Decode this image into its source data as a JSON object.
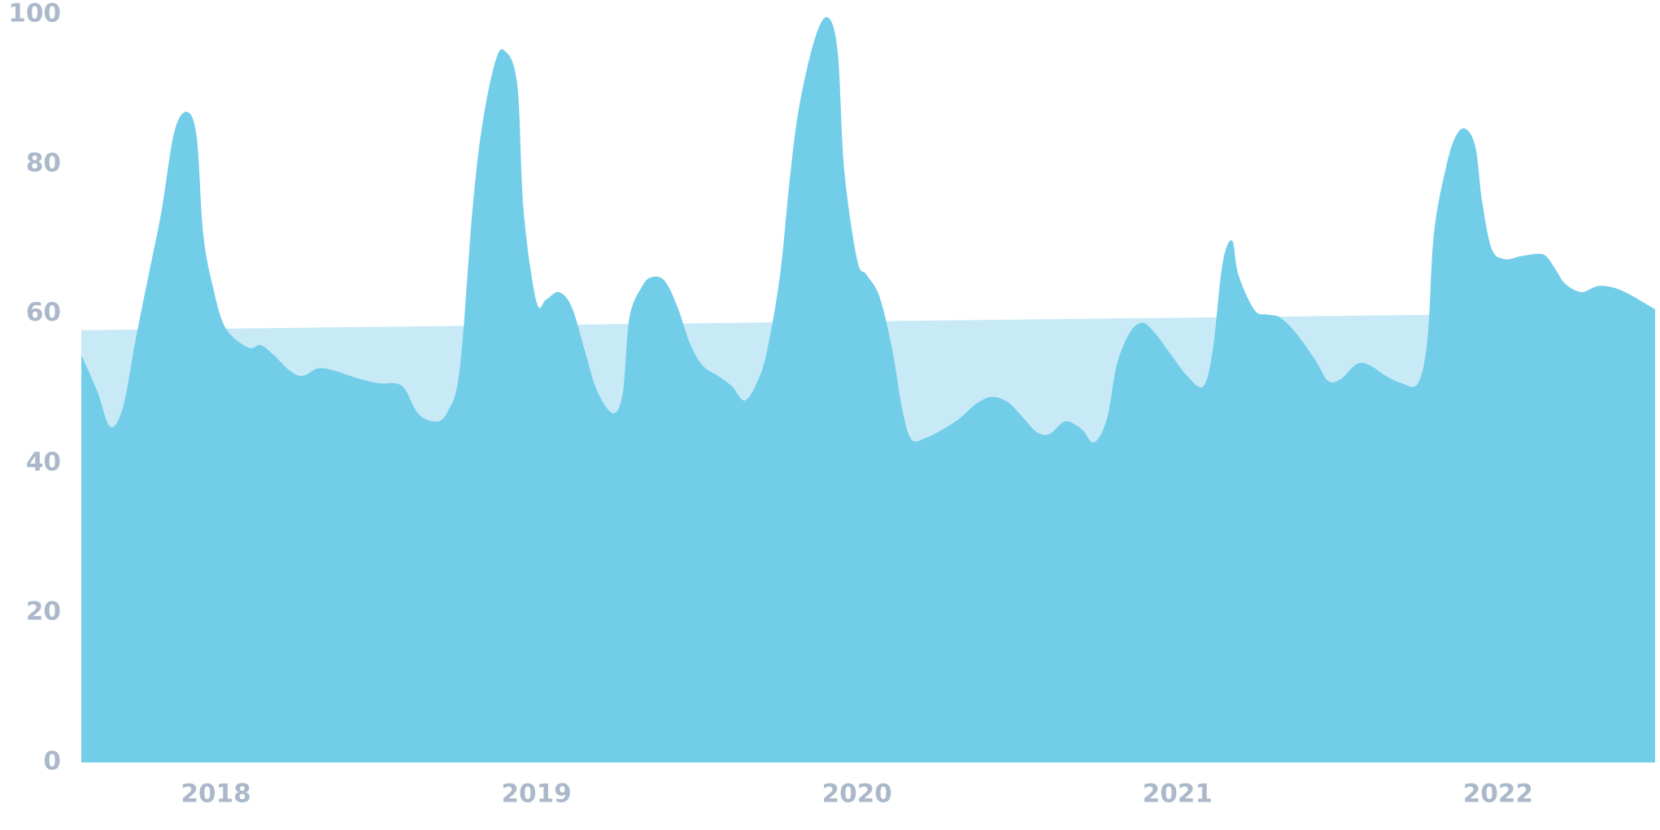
{
  "chart_data": {
    "type": "area",
    "xlim": [
      2017.58,
      2022.49
    ],
    "xticks": [
      2018,
      2019,
      2020,
      2021,
      2022
    ],
    "ylim": [
      0,
      100
    ],
    "yticks": [
      0,
      20,
      40,
      60,
      80,
      100
    ],
    "grid": false,
    "series": [
      {
        "color": "#c8eaf7",
        "x": [
          2017.58,
          2022.49
        ],
        "values": [
          57.8,
          60.2
        ]
      },
      {
        "color": "#72cde9",
        "x": [
          2017.58,
          2017.63,
          2017.67,
          2017.71,
          2017.75,
          2017.79,
          2017.83,
          2017.87,
          2017.91,
          2017.94,
          2017.96,
          2017.99,
          2018.03,
          2018.1,
          2018.14,
          2018.18,
          2018.23,
          2018.27,
          2018.32,
          2018.37,
          2018.44,
          2018.51,
          2018.56,
          2018.59,
          2018.63,
          2018.68,
          2018.72,
          2018.76,
          2018.8,
          2018.83,
          2018.87,
          2018.9,
          2018.94,
          2018.96,
          2019.0,
          2019.03,
          2019.07,
          2019.11,
          2019.15,
          2019.19,
          2019.24,
          2019.27,
          2019.29,
          2019.33,
          2019.36,
          2019.4,
          2019.44,
          2019.48,
          2019.52,
          2019.57,
          2019.61,
          2019.65,
          2019.69,
          2019.72,
          2019.76,
          2019.79,
          2019.82,
          2019.87,
          2019.91,
          2019.94,
          2019.96,
          2020.0,
          2020.03,
          2020.07,
          2020.11,
          2020.14,
          2020.17,
          2020.22,
          2020.27,
          2020.32,
          2020.37,
          2020.42,
          2020.47,
          2020.51,
          2020.56,
          2020.6,
          2020.65,
          2020.7,
          2020.74,
          2020.78,
          2020.81,
          2020.85,
          2020.89,
          2020.93,
          2020.98,
          2021.03,
          2021.08,
          2021.11,
          2021.14,
          2021.17,
          2021.19,
          2021.24,
          2021.28,
          2021.32,
          2021.37,
          2021.43,
          2021.47,
          2021.51,
          2021.56,
          2021.6,
          2021.65,
          2021.7,
          2021.75,
          2021.78,
          2021.8,
          2021.84,
          2021.87,
          2021.9,
          2021.93,
          2021.95,
          2021.98,
          2022.02,
          2022.07,
          2022.12,
          2022.15,
          2022.18,
          2022.21,
          2022.26,
          2022.31,
          2022.36,
          2022.41,
          2022.45,
          2022.49
        ],
        "values": [
          54.5,
          49.6,
          44.9,
          47.5,
          56.7,
          65.2,
          73.7,
          84.3,
          87.0,
          83.6,
          70.8,
          63.7,
          58.1,
          55.5,
          55.8,
          54.5,
          52.4,
          51.7,
          52.7,
          52.4,
          51.4,
          50.7,
          50.7,
          49.9,
          46.7,
          45.6,
          46.7,
          52.4,
          73.7,
          85.0,
          93.5,
          95.2,
          90.7,
          73.7,
          61.6,
          61.9,
          62.9,
          60.9,
          55.2,
          49.6,
          46.7,
          49.6,
          59.5,
          63.7,
          64.9,
          64.4,
          60.9,
          55.9,
          53.0,
          51.6,
          50.3,
          48.4,
          51.0,
          55.2,
          65.2,
          77.9,
          87.8,
          97.0,
          99.6,
          94.9,
          79.3,
          67.3,
          65.2,
          62.3,
          55.2,
          47.5,
          43.2,
          43.5,
          44.6,
          46.0,
          47.9,
          48.9,
          48.2,
          46.5,
          44.2,
          43.9,
          45.6,
          44.6,
          42.8,
          46.0,
          53.1,
          57.4,
          58.8,
          57.4,
          54.5,
          51.7,
          50.3,
          55.2,
          66.6,
          69.8,
          65.2,
          60.5,
          59.9,
          59.5,
          57.4,
          53.8,
          51.0,
          51.3,
          53.3,
          53.1,
          51.7,
          50.7,
          50.7,
          56.7,
          70.8,
          80.0,
          83.9,
          84.7,
          82.2,
          75.1,
          68.7,
          67.3,
          67.7,
          68.0,
          67.7,
          65.9,
          64.0,
          62.9,
          63.7,
          63.5,
          62.6,
          61.6,
          60.6
        ]
      }
    ]
  }
}
